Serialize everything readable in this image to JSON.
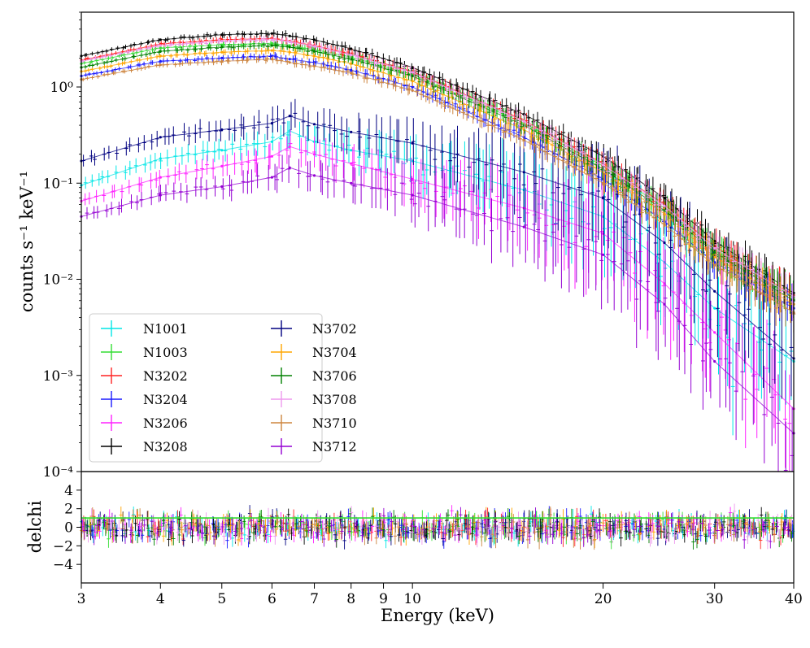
{
  "chart_data": [
    {
      "panel": "spectra",
      "type": "line",
      "xscale": "log",
      "yscale": "log",
      "xlim": [
        3,
        40
      ],
      "ylim": [
        0.0001,
        6
      ],
      "xlabel": "",
      "ylabel": "counts s⁻¹ keV⁻¹",
      "yticks": [
        {
          "value": 0.0001,
          "label": "10⁻⁴"
        },
        {
          "value": 0.001,
          "label": "10⁻³"
        },
        {
          "value": 0.01,
          "label": "10⁻²"
        },
        {
          "value": 0.1,
          "label": "10⁻¹"
        },
        {
          "value": 1,
          "label": "10⁰"
        }
      ],
      "legend_position": "lower-left",
      "x": [
        3,
        4,
        5,
        6,
        6.4,
        7,
        8,
        10,
        15,
        20,
        25,
        30,
        40
      ],
      "series": [
        {
          "name": "N1001",
          "color": "#00e6e6",
          "values": [
            0.095,
            0.18,
            0.22,
            0.27,
            0.35,
            0.27,
            0.22,
            0.17,
            0.085,
            0.045,
            0.015,
            0.005,
            0.0014
          ]
        },
        {
          "name": "N1003",
          "color": "#33dd33",
          "values": [
            1.75,
            2.55,
            2.75,
            2.85,
            2.7,
            2.45,
            2.05,
            1.35,
            0.42,
            0.15,
            0.055,
            0.02,
            0.0065
          ]
        },
        {
          "name": "N3202",
          "color": "#ff2222",
          "values": [
            1.9,
            2.8,
            3.1,
            3.2,
            3.0,
            2.7,
            2.2,
            1.45,
            0.45,
            0.16,
            0.06,
            0.022,
            0.0068
          ]
        },
        {
          "name": "N3204",
          "color": "#1a1aff",
          "values": [
            1.3,
            1.85,
            2.0,
            2.1,
            1.95,
            1.8,
            1.5,
            1.0,
            0.3,
            0.11,
            0.04,
            0.015,
            0.005
          ]
        },
        {
          "name": "N3206",
          "color": "#ff22ff",
          "values": [
            0.065,
            0.115,
            0.15,
            0.19,
            0.24,
            0.2,
            0.16,
            0.11,
            0.055,
            0.03,
            0.009,
            0.0028,
            0.00045
          ]
        },
        {
          "name": "N3208",
          "color": "#000000",
          "values": [
            2.1,
            3.1,
            3.5,
            3.6,
            3.4,
            3.1,
            2.5,
            1.6,
            0.52,
            0.19,
            0.07,
            0.025,
            0.0072
          ]
        },
        {
          "name": "N3702",
          "color": "#000080",
          "values": [
            0.17,
            0.3,
            0.36,
            0.42,
            0.5,
            0.41,
            0.34,
            0.26,
            0.13,
            0.07,
            0.024,
            0.0075,
            0.0015
          ]
        },
        {
          "name": "N3704",
          "color": "#ffa500",
          "values": [
            1.45,
            2.1,
            2.3,
            2.4,
            2.3,
            2.1,
            1.75,
            1.15,
            0.36,
            0.13,
            0.048,
            0.017,
            0.0055
          ]
        },
        {
          "name": "N3706",
          "color": "#008000",
          "values": [
            1.6,
            2.35,
            2.6,
            2.7,
            2.6,
            2.35,
            1.95,
            1.3,
            0.4,
            0.14,
            0.052,
            0.019,
            0.006
          ]
        },
        {
          "name": "N3708",
          "color": "#ee99ee",
          "values": [
            1.85,
            2.7,
            3.0,
            3.1,
            2.95,
            2.65,
            2.15,
            1.42,
            0.44,
            0.155,
            0.058,
            0.021,
            0.0066
          ]
        },
        {
          "name": "N3710",
          "color": "#cd853f",
          "values": [
            1.2,
            1.7,
            1.85,
            1.95,
            1.8,
            1.65,
            1.4,
            0.92,
            0.28,
            0.1,
            0.037,
            0.014,
            0.0045
          ]
        },
        {
          "name": "N3712",
          "color": "#9400d3",
          "values": [
            0.045,
            0.075,
            0.092,
            0.115,
            0.145,
            0.12,
            0.1,
            0.075,
            0.035,
            0.018,
            0.0055,
            0.0014,
            0.00025
          ]
        }
      ]
    },
    {
      "panel": "residuals",
      "type": "scatter",
      "xscale": "log",
      "xlim": [
        3,
        40
      ],
      "ylim": [
        -6,
        6
      ],
      "xlabel": "Energy (keV)",
      "ylabel": "delchi",
      "xticks": [
        3,
        4,
        5,
        6,
        7,
        8,
        9,
        10,
        20,
        30,
        40
      ],
      "yticks": [
        -4,
        -2,
        0,
        2,
        4
      ],
      "reference_line": 1,
      "scatter_range": [
        -3.5,
        3.5
      ]
    }
  ]
}
